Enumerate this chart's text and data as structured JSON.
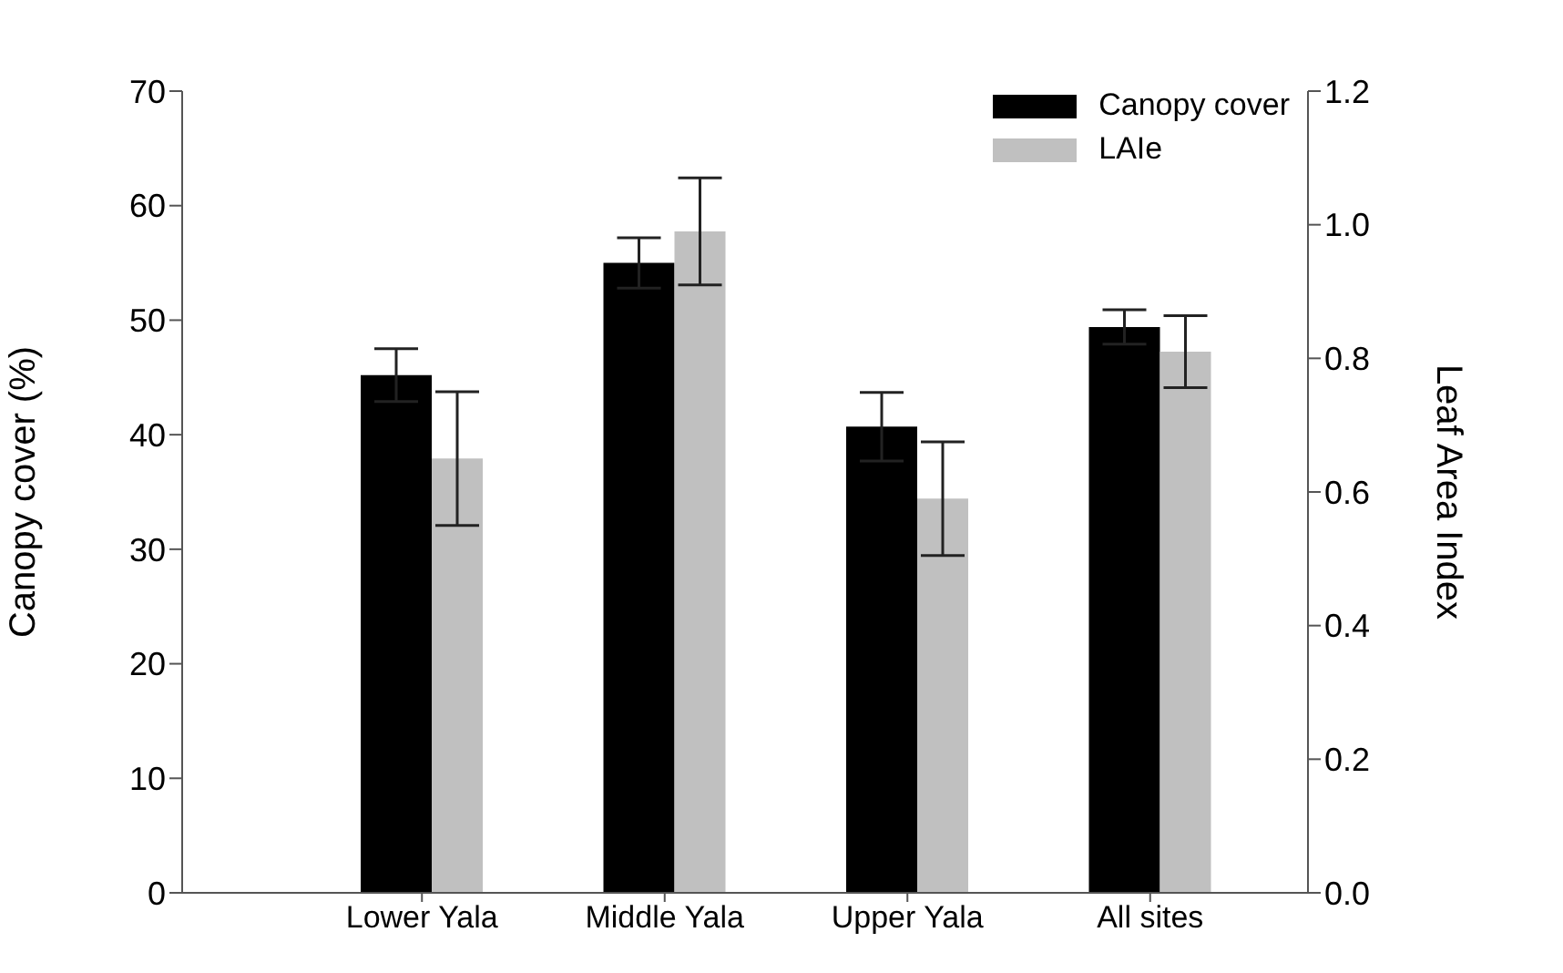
{
  "chart_data": {
    "type": "bar",
    "categories": [
      "Lower Yala",
      "Middle Yala",
      "Upper Yala",
      "All sites"
    ],
    "series": [
      {
        "name": "Canopy cover",
        "color": "#000000",
        "values": [
          45.2,
          55.0,
          40.7,
          49.4
        ],
        "errors": [
          2.3,
          2.2,
          3.0,
          1.5
        ]
      },
      {
        "name": "LAIe",
        "color": "#c0c0c0",
        "axis": "y2",
        "values": [
          0.65,
          0.99,
          0.59,
          0.81
        ],
        "errors": [
          0.1,
          0.08,
          0.085,
          0.054
        ]
      }
    ],
    "ylabel": "Canopy cover (%)",
    "y2label": "Leaf Area Index",
    "ylim": [
      0,
      70
    ],
    "yticks": [
      0,
      10,
      20,
      30,
      40,
      50,
      60,
      70
    ],
    "y2lim": [
      0,
      1.2
    ],
    "y2ticks": [
      {
        "value": 0,
        "label": "0.0"
      },
      {
        "value": 0.2,
        "label": "0.2"
      },
      {
        "value": 0.4,
        "label": "0.4"
      },
      {
        "value": 0.6,
        "label": "0.6"
      },
      {
        "value": 0.8,
        "label": "0.8"
      },
      {
        "value": 1.0,
        "label": "1.0"
      },
      {
        "value": 1.2,
        "label": "1.2"
      }
    ],
    "legend": "top right",
    "grid": false
  }
}
